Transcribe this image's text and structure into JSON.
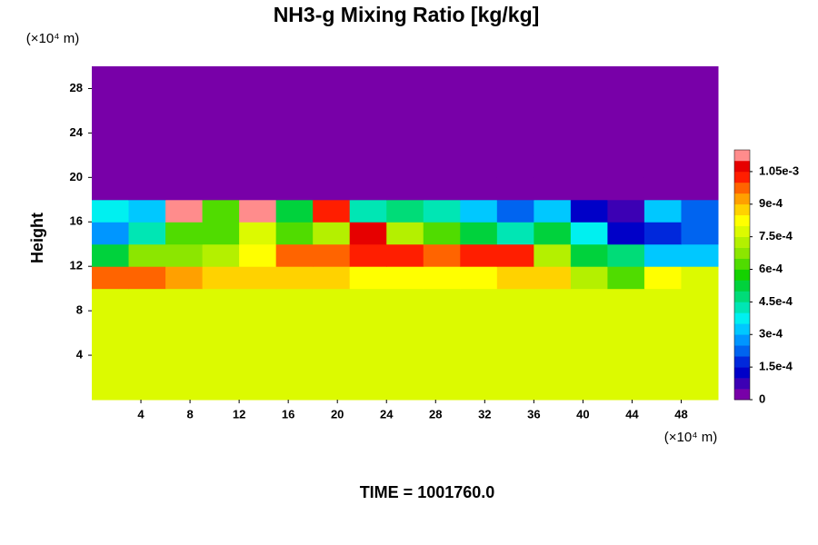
{
  "chart_data": {
    "type": "heatmap",
    "title": "NH3-g Mixing Ratio [kg/kg]",
    "ylabel": "Height",
    "y_unit_label": "(×10⁴ m)",
    "x_unit_label": "(×10⁴ m)",
    "footer": "TIME = 1001760.0",
    "xlim": [
      0,
      51
    ],
    "ylim": [
      0,
      30
    ],
    "xticks": [
      4,
      8,
      12,
      16,
      20,
      24,
      28,
      32,
      36,
      40,
      44,
      48
    ],
    "yticks": [
      4,
      8,
      12,
      16,
      20,
      24,
      28
    ],
    "clim": [
      0,
      0.00115
    ],
    "cticks": [
      0,
      {
        "value": 0.00015,
        "label": "1.5e-4"
      },
      {
        "value": 0.0003,
        "label": "3e-4"
      },
      {
        "value": 0.00045,
        "label": "4.5e-4"
      },
      {
        "value": 0.0006,
        "label": "6e-4"
      },
      {
        "value": 0.00075,
        "label": "7.5e-4"
      },
      {
        "value": 0.0009,
        "label": "9e-4"
      },
      {
        "value": 0.00105,
        "label": "1.05e-3"
      }
    ],
    "colorscale": [
      "#7800a8",
      "#3c00b4",
      "#0000c8",
      "#0028dc",
      "#0064f0",
      "#0096ff",
      "#00c8ff",
      "#00f0f0",
      "#00e6b4",
      "#00dc78",
      "#00d23c",
      "#14d200",
      "#50dc00",
      "#8ce600",
      "#b4f000",
      "#dcfa00",
      "#ffff00",
      "#ffd200",
      "#ffa000",
      "#ff6400",
      "#ff1e00",
      "#e60000",
      "#ff8c8c"
    ],
    "z": [
      [
        0.00078,
        0.00078,
        0.00078,
        0.00078,
        0.00078,
        0.00078,
        0.00078,
        0.00078,
        0.00078,
        0.00078,
        0.00078,
        0.00078,
        0.00078,
        0.00078,
        0.00078,
        0.00078,
        0.00078
      ],
      [
        0.00078,
        0.00078,
        0.00078,
        0.00078,
        0.00078,
        0.00078,
        0.00078,
        0.00078,
        0.00078,
        0.00078,
        0.00078,
        0.00078,
        0.00078,
        0.00078,
        0.00078,
        0.00078,
        0.00078
      ],
      [
        0.00078,
        0.00078,
        0.00078,
        0.00078,
        0.00078,
        0.00078,
        0.00078,
        0.00078,
        0.00078,
        0.00078,
        0.00078,
        0.00078,
        0.00078,
        0.00078,
        0.00078,
        0.00078,
        0.00078
      ],
      [
        0.00078,
        0.00078,
        0.00078,
        0.00078,
        0.00078,
        0.00078,
        0.00078,
        0.00078,
        0.00078,
        0.00078,
        0.00078,
        0.00078,
        0.00078,
        0.00078,
        0.00078,
        0.00078,
        0.00078
      ],
      [
        0.00078,
        0.00078,
        0.00078,
        0.00078,
        0.00078,
        0.00078,
        0.00078,
        0.00078,
        0.00078,
        0.00078,
        0.00078,
        0.00078,
        0.00078,
        0.00078,
        0.00078,
        0.00078,
        0.00078
      ],
      [
        0.00095,
        0.00095,
        0.0009,
        0.00085,
        0.00085,
        0.00085,
        0.00085,
        0.0008,
        0.0008,
        0.0008,
        0.0008,
        0.00085,
        0.00085,
        0.0007,
        0.0006,
        0.0008,
        0.00078
      ],
      [
        0.0005,
        0.00065,
        0.00065,
        0.0007,
        0.0008,
        0.00095,
        0.00095,
        0.001,
        0.001,
        0.00095,
        0.001,
        0.001,
        0.0007,
        0.0005,
        0.00045,
        0.0003,
        0.0003
      ],
      [
        0.00025,
        0.0004,
        0.0006,
        0.0006,
        0.00075,
        0.0006,
        0.0007,
        0.00105,
        0.0007,
        0.0006,
        0.0005,
        0.0004,
        0.0005,
        0.00035,
        0.0001,
        0.00015,
        0.0002
      ],
      [
        0.00035,
        0.0003,
        0.0011,
        0.0006,
        0.00115,
        0.0005,
        0.001,
        0.0004,
        0.00045,
        0.0004,
        0.0003,
        0.0002,
        0.0003,
        0.0001,
        5e-05,
        0.0003,
        0.0002
      ],
      [
        0,
        0,
        0,
        0,
        0,
        0,
        0,
        0,
        0,
        0,
        0,
        0,
        0,
        0,
        0,
        0,
        0
      ],
      [
        0,
        0,
        0,
        0,
        0,
        0,
        0,
        0,
        0,
        0,
        0,
        0,
        0,
        0,
        0,
        0,
        0
      ],
      [
        0,
        0,
        0,
        0,
        0,
        0,
        0,
        0,
        0,
        0,
        0,
        0,
        0,
        0,
        0,
        0,
        0
      ],
      [
        0,
        0,
        0,
        0,
        0,
        0,
        0,
        0,
        0,
        0,
        0,
        0,
        0,
        0,
        0,
        0,
        0
      ],
      [
        0,
        0,
        0,
        0,
        0,
        0,
        0,
        0,
        0,
        0,
        0,
        0,
        0,
        0,
        0,
        0,
        0
      ],
      [
        0,
        0,
        0,
        0,
        0,
        0,
        0,
        0,
        0,
        0,
        0,
        0,
        0,
        0,
        0,
        0,
        0
      ]
    ]
  }
}
